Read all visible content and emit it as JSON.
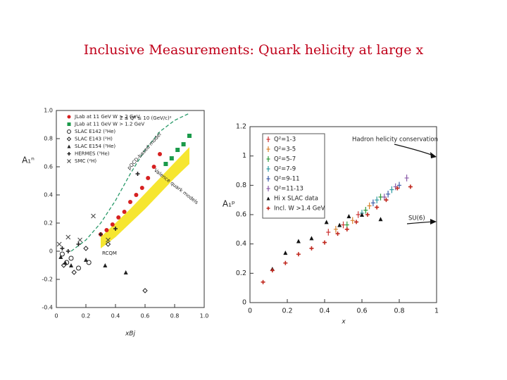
{
  "title": "Inclusive Measurements: Quark helicity at large x",
  "chart_data": [
    {
      "type": "scatter",
      "x_label": "xBj",
      "y_label": "A₁ⁿ",
      "xlim": [
        0,
        1
      ],
      "ylim": [
        -0.4,
        1
      ],
      "xticks": [
        0,
        0.2,
        0.4,
        0.6,
        0.8,
        {
          "value": 1,
          "label": "1.0"
        }
      ],
      "yticks": [
        -0.4,
        -0.2,
        0,
        0.2,
        0.4,
        0.6,
        0.8,
        {
          "value": 1,
          "label": "1.0"
        }
      ],
      "legend": "upper left",
      "series": [
        {
          "name": "JLab at 11 GeV W > 2 GeV",
          "color": "#d62020",
          "marker": "circle",
          "x": [
            0.3,
            0.34,
            0.38,
            0.42,
            0.46,
            0.5,
            0.54,
            0.58,
            0.62,
            0.66,
            0.7
          ],
          "values": [
            0.12,
            0.15,
            0.19,
            0.24,
            0.28,
            0.35,
            0.4,
            0.45,
            0.52,
            0.6,
            0.69
          ]
        },
        {
          "name": "JLab at 11 GeV W > 1.2 GeV",
          "color": "#1a9a4a",
          "marker": "square",
          "x": [
            0.74,
            0.78,
            0.82,
            0.86,
            0.9
          ],
          "values": [
            0.62,
            0.66,
            0.72,
            0.76,
            0.82
          ]
        },
        {
          "name": "SLAC E142 (³He)",
          "color": "#222222",
          "marker": "open-circle",
          "x": [
            0.04,
            0.07,
            0.1,
            0.15,
            0.22
          ],
          "values": [
            -0.02,
            -0.08,
            -0.05,
            -0.12,
            -0.08
          ]
        },
        {
          "name": "SLAC E143 (²H)",
          "color": "#222222",
          "marker": "diamond",
          "x": [
            0.05,
            0.12,
            0.2,
            0.35,
            0.6
          ],
          "values": [
            -0.1,
            -0.15,
            0.02,
            0.05,
            -0.28
          ]
        },
        {
          "name": "SLAC E154 (³He)",
          "color": "#222222",
          "marker": "triangle",
          "x": [
            0.03,
            0.06,
            0.1,
            0.2,
            0.33,
            0.47
          ],
          "values": [
            -0.04,
            -0.08,
            -0.1,
            -0.06,
            -0.1,
            -0.15
          ]
        },
        {
          "name": "HERMES (³He)",
          "color": "#222222",
          "marker": "plus",
          "x": [
            0.04,
            0.08,
            0.15,
            0.3,
            0.4,
            0.55
          ],
          "values": [
            0.02,
            0.0,
            0.05,
            0.12,
            0.16,
            0.55
          ]
        },
        {
          "name": "SMC (²H)",
          "color": "#444444",
          "marker": "cross",
          "x": [
            0.02,
            0.08,
            0.16,
            0.25,
            0.35
          ],
          "values": [
            0.05,
            0.1,
            0.08,
            0.25,
            0.08
          ]
        }
      ],
      "curves": [
        {
          "color": "#2a9a6a",
          "dash": true,
          "x": [
            0.1,
            0.2,
            0.3,
            0.4,
            0.5,
            0.6,
            0.7,
            0.8,
            0.9
          ],
          "values": [
            0.0,
            0.08,
            0.2,
            0.36,
            0.55,
            0.72,
            0.85,
            0.93,
            0.98
          ]
        }
      ],
      "band": {
        "color": "#f5e31a",
        "x": [
          0.3,
          0.4,
          0.5,
          0.6,
          0.7,
          0.8,
          0.9
        ],
        "lower": [
          0.02,
          0.1,
          0.2,
          0.3,
          0.41,
          0.52,
          0.62
        ],
        "upper": [
          0.1,
          0.2,
          0.3,
          0.41,
          0.52,
          0.63,
          0.74
        ]
      },
      "annotations": [
        "2 ≤ Q² ≤ 10 (GeV/c)²",
        "RCQM",
        "pQCD-based model",
        "Valence quark models"
      ]
    },
    {
      "type": "scatter",
      "x_label": "x",
      "y_label": "A₁ᵖ",
      "xlim": [
        0,
        1
      ],
      "ylim": [
        0,
        1.2
      ],
      "xticks": [
        0,
        0.2,
        0.4,
        0.6,
        0.8,
        1
      ],
      "yticks": [
        0,
        0.2,
        0.4,
        0.6,
        0.8,
        1,
        1.2
      ],
      "legend": "upper left",
      "series": [
        {
          "name": "Q²=1-3",
          "color": "#cc3333",
          "marker": "bar",
          "x": [
            0.42,
            0.5,
            0.58
          ],
          "values": [
            0.48,
            0.53,
            0.6
          ]
        },
        {
          "name": "Q²=3-5",
          "color": "#d9822b",
          "marker": "bar",
          "x": [
            0.46,
            0.55,
            0.64
          ],
          "values": [
            0.5,
            0.56,
            0.66
          ]
        },
        {
          "name": "Q²=5-7",
          "color": "#2e9a3a",
          "marker": "bar",
          "x": [
            0.52,
            0.62,
            0.7
          ],
          "values": [
            0.53,
            0.63,
            0.72
          ]
        },
        {
          "name": "Q²=7-9",
          "color": "#2a9aa0",
          "marker": "bar",
          "x": [
            0.6,
            0.68,
            0.76
          ],
          "values": [
            0.61,
            0.7,
            0.77
          ]
        },
        {
          "name": "Q²=9-11",
          "color": "#3a5aa8",
          "marker": "bar",
          "x": [
            0.66,
            0.74,
            0.8
          ],
          "values": [
            0.68,
            0.74,
            0.8
          ]
        },
        {
          "name": "Q²=11-13",
          "color": "#8a5aa8",
          "marker": "bar",
          "x": [
            0.72,
            0.78,
            0.84
          ],
          "values": [
            0.72,
            0.79,
            0.85
          ]
        },
        {
          "name": "Hi x SLAC data",
          "color": "#111111",
          "marker": "triangle",
          "x": [
            0.12,
            0.19,
            0.26,
            0.33,
            0.41,
            0.48,
            0.53,
            0.6,
            0.7
          ],
          "values": [
            0.23,
            0.34,
            0.42,
            0.44,
            0.55,
            0.53,
            0.59,
            0.6,
            0.57
          ]
        },
        {
          "name": "Incl. W >1.4 GeV",
          "color": "#c0281e",
          "marker": "plus",
          "x": [
            0.07,
            0.12,
            0.19,
            0.26,
            0.33,
            0.4,
            0.47,
            0.52,
            0.57,
            0.63,
            0.68,
            0.73,
            0.79,
            0.86
          ],
          "values": [
            0.14,
            0.22,
            0.27,
            0.33,
            0.37,
            0.41,
            0.47,
            0.5,
            0.55,
            0.6,
            0.65,
            0.7,
            0.78,
            0.79
          ]
        }
      ],
      "annotations": [
        "Hadron helicity conservation",
        "SU(6)"
      ]
    }
  ]
}
